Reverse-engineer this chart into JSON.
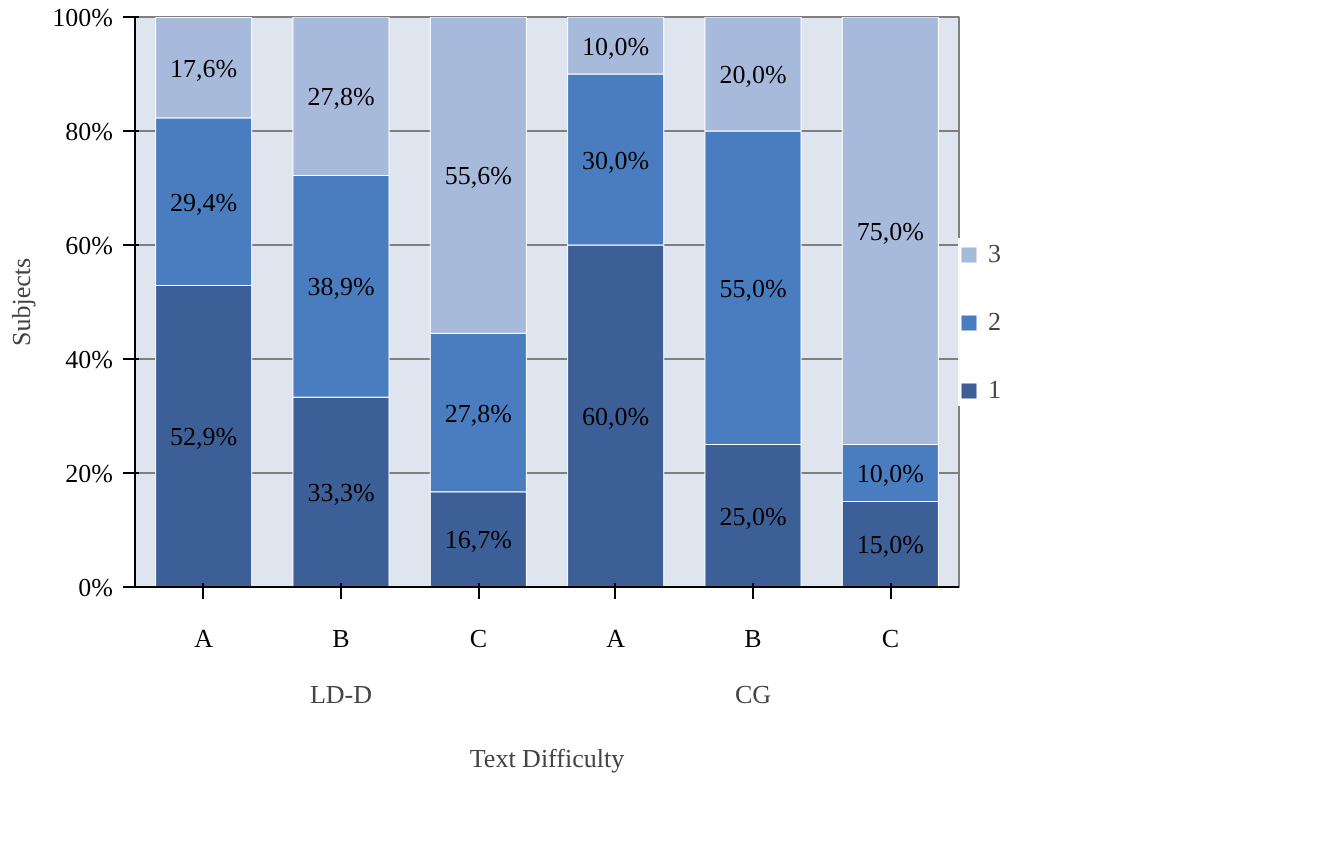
{
  "chart_data": {
    "type": "bar",
    "stacked": true,
    "xlabel": "Text Difficulty",
    "ylabel": "Subjects",
    "categories": [
      "A",
      "B",
      "C",
      "A",
      "B",
      "C"
    ],
    "annotations": [
      "LD-D",
      "CG"
    ],
    "ylim": [
      0,
      100
    ],
    "yticks": [
      {
        "value": 0,
        "label": "0%"
      },
      {
        "value": 20,
        "label": "20%"
      },
      {
        "value": 40,
        "label": "40%"
      },
      {
        "value": 60,
        "label": "60%"
      },
      {
        "value": 80,
        "label": "80%"
      },
      {
        "value": 100,
        "label": "100%"
      }
    ],
    "grid": "y",
    "legend": "right",
    "series": [
      {
        "name": "1",
        "color": "#3b5f96",
        "values": [
          52.9,
          33.3,
          16.7,
          60.0,
          25.0,
          15.0
        ],
        "value_labels": [
          "52,9%",
          "33,3%",
          "16,7%",
          "60,0%",
          "25,0%",
          "15,0%"
        ]
      },
      {
        "name": "2",
        "color": "#4a7dbf",
        "values": [
          29.4,
          38.9,
          27.8,
          30.0,
          55.0,
          10.0
        ],
        "value_labels": [
          "29,4%",
          "38,9%",
          "27,8%",
          "30,0%",
          "55,0%",
          "10,0%"
        ]
      },
      {
        "name": "3",
        "color": "#a8badb",
        "values": [
          17.6,
          27.8,
          55.6,
          10.0,
          20.0,
          75.0
        ],
        "value_labels": [
          "17,6%",
          "27,8%",
          "55,6%",
          "10,0%",
          "20,0%",
          "75,0%"
        ]
      }
    ]
  }
}
